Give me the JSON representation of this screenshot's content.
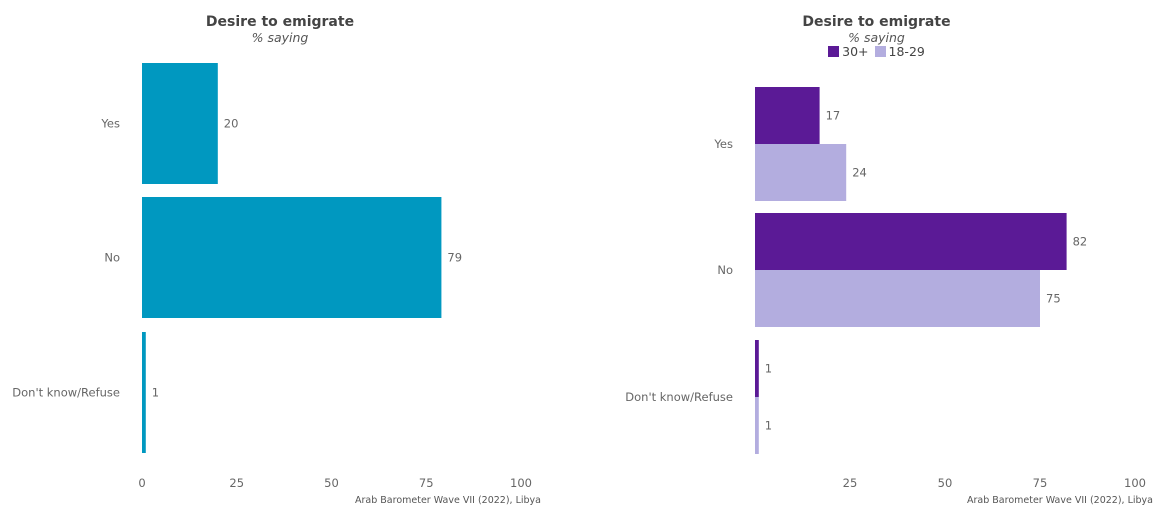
{
  "colors": {
    "single": "#0098c0",
    "age_30_plus": "#5b1a96",
    "age_18_29": "#b3addf"
  },
  "caption": "Arab Barometer Wave VII (2022), Libya",
  "chart_data": [
    {
      "type": "bar",
      "orientation": "horizontal",
      "title": "Desire to emigrate",
      "subtitle": "% saying",
      "categories": [
        "Yes",
        "No",
        "Don't know/Refuse"
      ],
      "series": [
        {
          "values": [
            20,
            79,
            1
          ]
        }
      ],
      "xlim": [
        0,
        100
      ],
      "xticks": [
        "0",
        "25",
        "50",
        "75",
        "100"
      ],
      "grid": false,
      "legend": "none"
    },
    {
      "type": "bar",
      "orientation": "horizontal",
      "title": "Desire to emigrate",
      "subtitle": "% saying",
      "categories": [
        "Yes",
        "No",
        "Don't know/Refuse"
      ],
      "series": [
        {
          "name": "30+",
          "values": [
            17,
            82,
            1
          ]
        },
        {
          "name": "18-29",
          "values": [
            24,
            75,
            1
          ]
        }
      ],
      "xlim": [
        0,
        100
      ],
      "xticks": [
        "25",
        "50",
        "75",
        "100"
      ],
      "grid": false,
      "legend": "top"
    }
  ]
}
